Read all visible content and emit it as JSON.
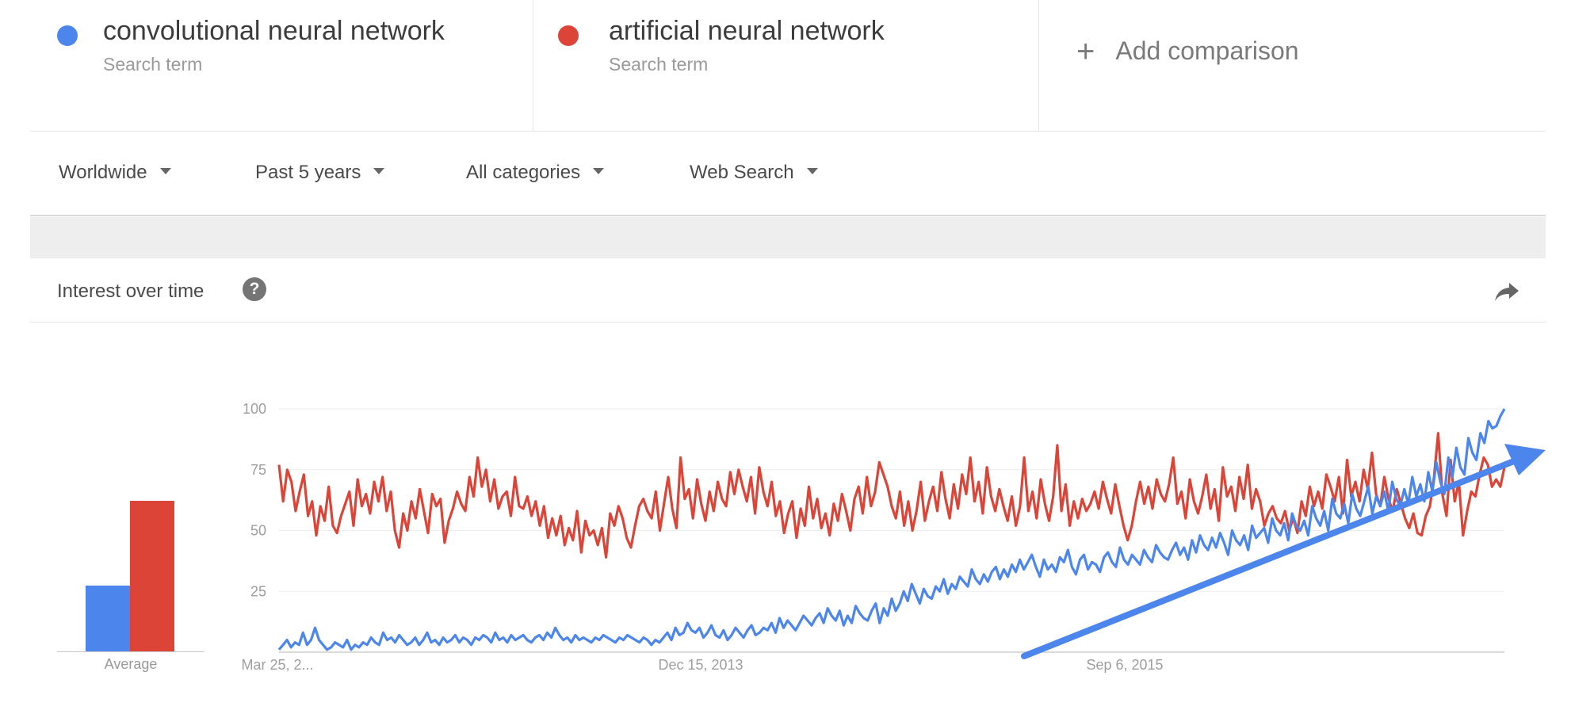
{
  "terms": [
    {
      "name": "convolutional neural network",
      "subtitle": "Search term",
      "color": "#4c86ec"
    },
    {
      "name": "artificial neural network",
      "subtitle": "Search term",
      "color": "#dc4437"
    }
  ],
  "add_comparison": {
    "label": "Add comparison"
  },
  "filters": {
    "region": "Worldwide",
    "time": "Past 5 years",
    "category": "All categories",
    "search_type": "Web Search"
  },
  "card": {
    "title": "Interest over time",
    "help_icon": "help-icon",
    "share_icon": "share-icon"
  },
  "average": {
    "label": "Average",
    "values": [
      {
        "series": "convolutional neural network",
        "value": 27
      },
      {
        "series": "artificial neural network",
        "value": 62
      }
    ]
  },
  "chart_data": {
    "type": "line",
    "x_tick_labels": [
      "Mar 25, 2...",
      "Dec 15, 2013",
      "Sep 6, 2015"
    ],
    "yticks": [
      25,
      50,
      75,
      100
    ],
    "ylim": [
      0,
      100
    ],
    "grid": true,
    "annotation": "blue upward trend arrow",
    "series": [
      {
        "name": "convolutional neural network",
        "color": "#4c86ec",
        "values": [
          1,
          3,
          5,
          2,
          4,
          3,
          8,
          3,
          5,
          10,
          5,
          3,
          1,
          2,
          4,
          3,
          2,
          5,
          1,
          3,
          2,
          4,
          3,
          6,
          4,
          3,
          8,
          5,
          6,
          4,
          7,
          5,
          3,
          4,
          6,
          3,
          5,
          8,
          4,
          5,
          3,
          6,
          4,
          5,
          7,
          4,
          6,
          5,
          3,
          6,
          5,
          7,
          6,
          4,
          8,
          5,
          6,
          4,
          7,
          5,
          6,
          7,
          5,
          4,
          6,
          7,
          5,
          8,
          6,
          10,
          7,
          5,
          6,
          4,
          7,
          5,
          6,
          5,
          4,
          6,
          5,
          7,
          6,
          5,
          4,
          6,
          5,
          7,
          6,
          5,
          4,
          6,
          5,
          3,
          5,
          4,
          6,
          8,
          5,
          10,
          7,
          8,
          12,
          9,
          8,
          10,
          6,
          8,
          11,
          7,
          6,
          9,
          5,
          7,
          10,
          8,
          6,
          9,
          11,
          7,
          8,
          10,
          9,
          12,
          8,
          14,
          10,
          13,
          11,
          9,
          12,
          15,
          13,
          11,
          14,
          16,
          12,
          18,
          15,
          13,
          17,
          11,
          15,
          12,
          19,
          16,
          14,
          13,
          17,
          20,
          12,
          18,
          15,
          22,
          17,
          20,
          25,
          21,
          28,
          24,
          20,
          26,
          23,
          22,
          27,
          25,
          30,
          24,
          28,
          26,
          31,
          29,
          27,
          34,
          30,
          28,
          32,
          29,
          33,
          35,
          30,
          34,
          31,
          36,
          33,
          38,
          34,
          37,
          40,
          35,
          31,
          38,
          34,
          36,
          33,
          39,
          37,
          42,
          35,
          32,
          38,
          40,
          34,
          37,
          36,
          33,
          39,
          41,
          37,
          35,
          43,
          38,
          36,
          40,
          38,
          36,
          42,
          39,
          37,
          44,
          41,
          39,
          38,
          42,
          45,
          40,
          43,
          38,
          46,
          41,
          48,
          44,
          42,
          47,
          43,
          49,
          45,
          40,
          50,
          46,
          44,
          48,
          42,
          52,
          47,
          49,
          51,
          45,
          55,
          50,
          48,
          53,
          46,
          57,
          52,
          50,
          54,
          48,
          60,
          55,
          52,
          58,
          50,
          63,
          57,
          55,
          61,
          53,
          65,
          59,
          56,
          62,
          68,
          57,
          64,
          60,
          66,
          58,
          70,
          63,
          60,
          67,
          61,
          72,
          64,
          69,
          62,
          74,
          66,
          78,
          70,
          65,
          80,
          72,
          84,
          76,
          73,
          88,
          82,
          79,
          90,
          86,
          95,
          92,
          93,
          97,
          100
        ]
      },
      {
        "name": "artificial neural network",
        "color": "#dc4437",
        "values": [
          77,
          62,
          75,
          70,
          58,
          66,
          73,
          56,
          62,
          48,
          60,
          54,
          68,
          52,
          49,
          56,
          61,
          66,
          52,
          71,
          60,
          65,
          57,
          70,
          62,
          72,
          58,
          66,
          50,
          43,
          57,
          50,
          62,
          55,
          67,
          58,
          49,
          65,
          60,
          63,
          45,
          54,
          59,
          66,
          61,
          58,
          72,
          64,
          80,
          68,
          75,
          62,
          71,
          59,
          64,
          66,
          56,
          72,
          60,
          59,
          64,
          56,
          62,
          52,
          60,
          47,
          55,
          48,
          56,
          44,
          51,
          46,
          58,
          41,
          54,
          48,
          50,
          44,
          51,
          39,
          57,
          52,
          60,
          55,
          47,
          43,
          52,
          60,
          63,
          58,
          55,
          66,
          50,
          61,
          72,
          59,
          51,
          80,
          63,
          67,
          55,
          71,
          61,
          54,
          66,
          58,
          70,
          63,
          60,
          74,
          65,
          75,
          68,
          62,
          72,
          57,
          76,
          66,
          60,
          70,
          56,
          62,
          49,
          57,
          62,
          47,
          59,
          52,
          68,
          55,
          63,
          51,
          57,
          48,
          61,
          54,
          65,
          58,
          50,
          63,
          68,
          57,
          72,
          60,
          66,
          78,
          73,
          68,
          60,
          55,
          66,
          52,
          62,
          50,
          58,
          70,
          54,
          62,
          68,
          58,
          74,
          63,
          55,
          69,
          59,
          73,
          65,
          80,
          62,
          70,
          57,
          76,
          64,
          58,
          67,
          60,
          54,
          64,
          52,
          60,
          80,
          58,
          66,
          55,
          71,
          61,
          54,
          64,
          85,
          58,
          69,
          52,
          62,
          55,
          63,
          58,
          61,
          66,
          59,
          70,
          63,
          57,
          69,
          60,
          52,
          46,
          52,
          62,
          70,
          61,
          68,
          59,
          71,
          65,
          62,
          69,
          80,
          61,
          66,
          55,
          71,
          62,
          57,
          64,
          73,
          59,
          67,
          54,
          76,
          64,
          68,
          58,
          72,
          63,
          77,
          59,
          67,
          62,
          52,
          57,
          60,
          55,
          53,
          58,
          50,
          55,
          49,
          62,
          56,
          68,
          60,
          66,
          59,
          73,
          68,
          62,
          72,
          57,
          79,
          64,
          70,
          62,
          75,
          67,
          82,
          65,
          60,
          72,
          63,
          58,
          67,
          61,
          55,
          51,
          57,
          49,
          48,
          56,
          60,
          72,
          90,
          65,
          56,
          79,
          62,
          70,
          48,
          58,
          66,
          64,
          73,
          80,
          77,
          68,
          71,
          68,
          76
        ]
      }
    ]
  }
}
